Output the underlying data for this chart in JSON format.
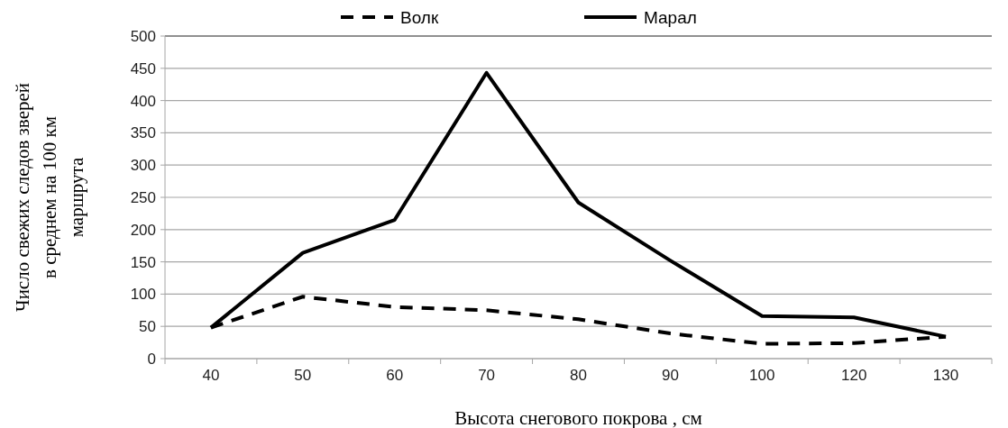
{
  "chart_data": {
    "type": "line",
    "xlabel": "Высота снегового покрова , см",
    "ylabel": "Число свежих следов зверей в среднем на 100 км маршрута",
    "categories": [
      "40",
      "50",
      "60",
      "70",
      "80",
      "90",
      "100",
      "120",
      "130"
    ],
    "series": [
      {
        "name": "Волк",
        "color": "#000000",
        "line_style": "dashed",
        "values": [
          48,
          96,
          80,
          75,
          61,
          39,
          23,
          24,
          34
        ]
      },
      {
        "name": "Марал",
        "color": "#000000",
        "line_style": "solid",
        "values": [
          48,
          164,
          215,
          443,
          242,
          152,
          66,
          64,
          34
        ]
      }
    ],
    "ylim": [
      0,
      500
    ],
    "yticks": [
      0,
      50,
      100,
      150,
      200,
      250,
      300,
      350,
      400,
      450,
      500
    ],
    "grid": "y",
    "legend": "top"
  }
}
